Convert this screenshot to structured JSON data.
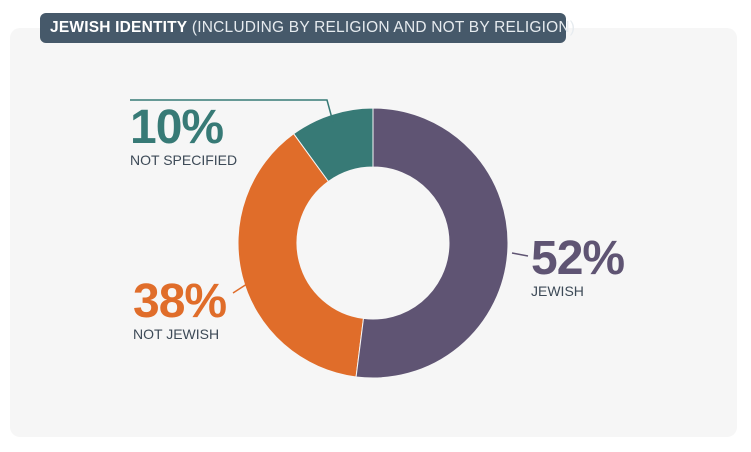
{
  "title": {
    "main": "JEWISH IDENTITY",
    "sub": "(INCLUDING BY RELIGION AND NOT BY RELIGION)"
  },
  "chart_data": {
    "type": "pie",
    "donut": true,
    "title": "JEWISH IDENTITY (INCLUDING BY RELIGION AND NOT BY RELIGION)",
    "slices": [
      {
        "label": "JEWISH",
        "value": 52,
        "display": "52%",
        "color": "#5f5473"
      },
      {
        "label": "NOT JEWISH",
        "value": 38,
        "display": "38%",
        "color": "#e06d2a"
      },
      {
        "label": "NOT SPECIFIED",
        "value": 10,
        "display": "10%",
        "color": "#377a76"
      }
    ]
  }
}
